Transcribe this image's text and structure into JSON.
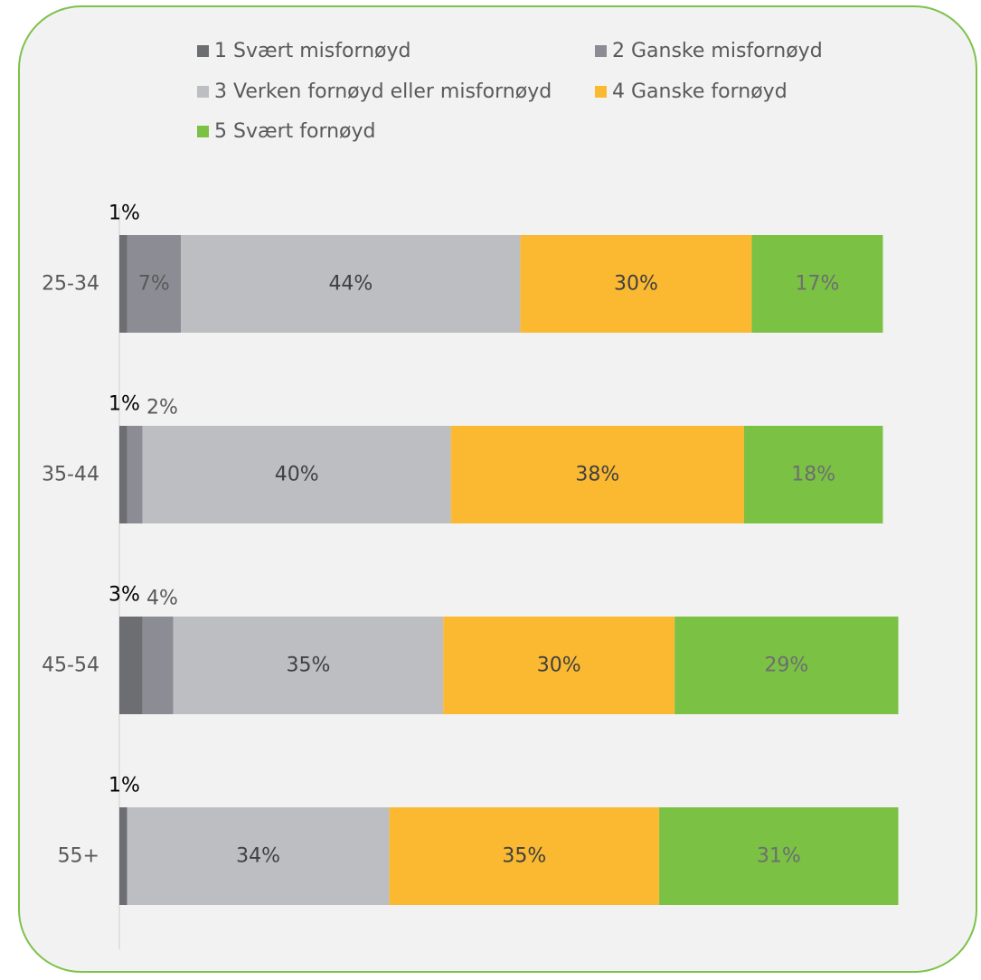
{
  "colors": {
    "frame_border": "#7dc24b",
    "frame_fill": "#f2f2f2",
    "axis_line": "#d9d9d9",
    "category_text": "#595959",
    "outside_label_dark": "#000000",
    "outside_label_gray": "#595959"
  },
  "legend": {
    "items": [
      {
        "label": "1 Svært misfornøyd",
        "color": "#6d6e71"
      },
      {
        "label": "2 Ganske misfornøyd",
        "color": "#8c8c94"
      },
      {
        "label": "3 Verken fornøyd eller misfornøyd",
        "color": "#bdbec2"
      },
      {
        "label": "4 Ganske fornøyd",
        "color": "#fbb931"
      },
      {
        "label": "5 Svært fornøyd",
        "color": "#7bc143"
      }
    ]
  },
  "chart_data": {
    "type": "bar",
    "orientation": "horizontal",
    "stacked": true,
    "title": "",
    "xlabel": "",
    "ylabel": "",
    "xlim": [
      0,
      100
    ],
    "grid": false,
    "legend_position": "top",
    "categories": [
      "25-34",
      "35-44",
      "45-54",
      "55+"
    ],
    "series": [
      {
        "name": "1 Svært misfornøyd",
        "color": "#6d6e71",
        "values": [
          1,
          1,
          3,
          1
        ],
        "labels": [
          "1%",
          "1%",
          "3%",
          "1%"
        ],
        "label_color": "#000000"
      },
      {
        "name": "2 Ganske misfornøyd",
        "color": "#8c8c94",
        "values": [
          7,
          2,
          4,
          0
        ],
        "labels": [
          "7%",
          "2%",
          "4%",
          ""
        ],
        "label_color": "#595959"
      },
      {
        "name": "3 Verken fornøyd eller misfornøyd",
        "color": "#bdbec2",
        "values": [
          44,
          40,
          35,
          34
        ],
        "labels": [
          "44%",
          "40%",
          "35%",
          "34%"
        ],
        "label_color": "#404040"
      },
      {
        "name": "4 Ganske fornøyd",
        "color": "#fbb931",
        "values": [
          30,
          38,
          30,
          35
        ],
        "labels": [
          "30%",
          "38%",
          "30%",
          "35%"
        ],
        "label_color": "#404040"
      },
      {
        "name": "5 Svært fornøyd",
        "color": "#7bc143",
        "values": [
          17,
          18,
          29,
          31
        ],
        "labels": [
          "17%",
          "18%",
          "29%",
          "31%"
        ],
        "label_color": "#6d6e71"
      }
    ]
  }
}
